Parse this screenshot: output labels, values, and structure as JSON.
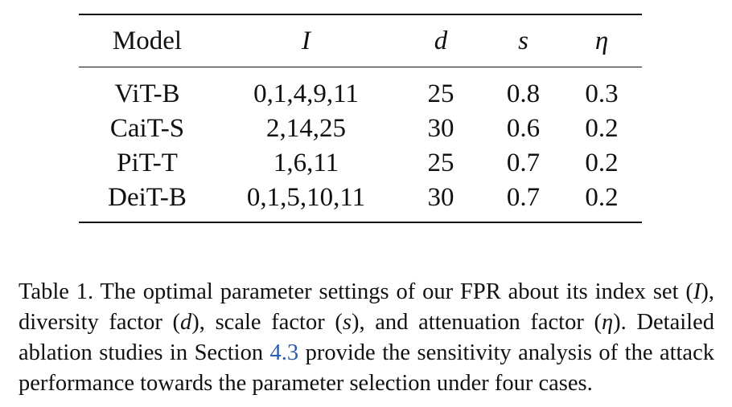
{
  "table": {
    "headers": {
      "model": "Model",
      "index_set": "I",
      "diversity": "d",
      "scale": "s",
      "attenuation": "η"
    },
    "rows": [
      {
        "model": "ViT-B",
        "index_set": "0,1,4,9,11",
        "d": "25",
        "s": "0.8",
        "eta": "0.3"
      },
      {
        "model": "CaiT-S",
        "index_set": "2,14,25",
        "d": "30",
        "s": "0.6",
        "eta": "0.2"
      },
      {
        "model": "PiT-T",
        "index_set": "1,6,11",
        "d": "25",
        "s": "0.7",
        "eta": "0.2"
      },
      {
        "model": "DeiT-B",
        "index_set": "0,1,5,10,11",
        "d": "30",
        "s": "0.7",
        "eta": "0.2"
      }
    ]
  },
  "caption": {
    "t1": "Table 1. The optimal parameter settings of our FPR about its index set (",
    "m1": "I",
    "t2": "), diversity factor (",
    "m2": "d",
    "t3": "), scale factor (",
    "m3": "s",
    "t4": "), and attenuation factor (",
    "m4": "η",
    "t5": "). Detailed ablation studies in Section ",
    "ref": "4.3",
    "t6": " provide the sensitivity analysis of the attack performance towards the parameter selection under four cases."
  }
}
